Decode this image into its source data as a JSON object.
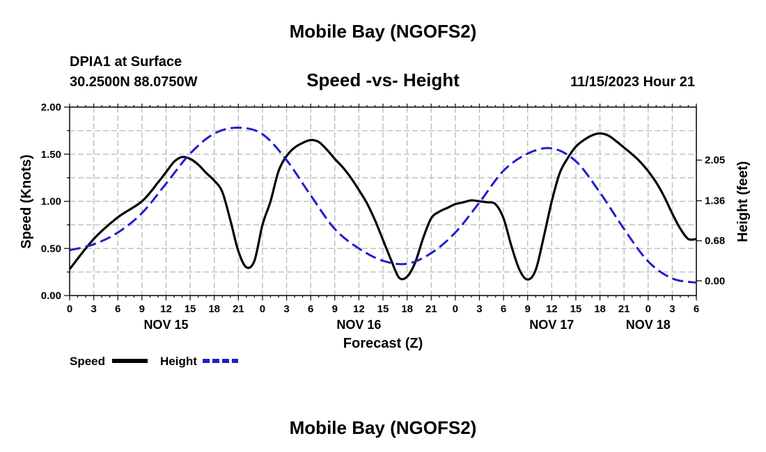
{
  "page": {
    "top_title": "Mobile Bay (NGOFS2)",
    "bottom_title": "Mobile Bay (NGOFS2)",
    "station": "DPIA1 at Surface",
    "location": "30.2500N  88.0750W",
    "datetime": "11/15/2023 Hour 21"
  },
  "chart_data": {
    "type": "line",
    "title": "Speed -vs- Height",
    "xlabel": "Forecast (Z)",
    "ylabel_left": "Speed (Knots)",
    "ylabel_right": "Height (feet)",
    "x_unit": "hours since NOV 15 00Z",
    "xlim": [
      0,
      78
    ],
    "ylim_left": [
      0,
      2.0
    ],
    "ylim_right": [
      -0.25,
      2.95
    ],
    "left_ticks": [
      "0.00",
      "0.50",
      "1.00",
      "1.50",
      "2.00"
    ],
    "right_ticks": [
      "0.00",
      "0.68",
      "1.36",
      "2.05"
    ],
    "right_tick_values": [
      0.0,
      0.68,
      1.36,
      2.05
    ],
    "x_tick_labels": [
      "0",
      "3",
      "6",
      "9",
      "12",
      "15",
      "18",
      "21",
      "0",
      "3",
      "6",
      "9",
      "12",
      "15",
      "18",
      "21",
      "0",
      "3",
      "6",
      "9",
      "12",
      "15",
      "18",
      "21",
      "0",
      "3",
      "6"
    ],
    "day_labels": [
      {
        "label": "NOV 15",
        "x": 12
      },
      {
        "label": "NOV 16",
        "x": 36
      },
      {
        "label": "NOV 17",
        "x": 60
      },
      {
        "label": "NOV 18",
        "x": 72
      }
    ],
    "series": [
      {
        "name": "Speed",
        "axis": "left",
        "color": "#000000",
        "dash": "solid",
        "x": [
          0,
          3,
          6,
          9,
          11,
          12,
          13,
          14,
          15,
          16,
          17,
          18,
          19,
          20,
          21,
          22,
          23,
          24,
          25,
          26,
          27,
          28,
          29,
          30,
          31,
          32,
          33,
          34,
          35,
          36,
          37,
          38,
          39,
          40,
          41,
          42,
          43,
          44,
          45,
          46,
          47,
          48,
          49,
          50,
          51,
          52,
          53,
          54,
          55,
          56,
          57,
          58,
          59,
          60,
          61,
          62,
          63,
          64,
          65,
          66,
          67,
          68,
          69,
          70,
          71,
          72,
          73,
          74,
          75,
          76,
          77,
          78
        ],
        "values": [
          0.28,
          0.6,
          0.83,
          1.0,
          1.2,
          1.31,
          1.42,
          1.47,
          1.45,
          1.39,
          1.3,
          1.22,
          1.1,
          0.8,
          0.47,
          0.3,
          0.37,
          0.75,
          1.0,
          1.32,
          1.48,
          1.57,
          1.62,
          1.65,
          1.63,
          1.55,
          1.45,
          1.36,
          1.25,
          1.12,
          0.98,
          0.8,
          0.59,
          0.38,
          0.19,
          0.2,
          0.35,
          0.61,
          0.82,
          0.89,
          0.93,
          0.97,
          0.99,
          1.01,
          1.0,
          0.99,
          0.97,
          0.82,
          0.52,
          0.27,
          0.17,
          0.27,
          0.62,
          1.0,
          1.3,
          1.46,
          1.58,
          1.65,
          1.7,
          1.72,
          1.7,
          1.64,
          1.57,
          1.5,
          1.42,
          1.32,
          1.2,
          1.05,
          0.87,
          0.71,
          0.6,
          0.55
        ],
        "end_value": 0.6
      },
      {
        "name": "Height",
        "axis": "right",
        "color": "#1f1fcc",
        "dash": "dashed",
        "x": [
          0,
          3,
          6,
          9,
          12,
          15,
          18,
          21,
          24,
          27,
          30,
          33,
          36,
          39,
          42,
          45,
          48,
          51,
          54,
          57,
          60,
          63,
          66,
          69,
          72,
          75,
          78
        ],
        "values": [
          0.52,
          0.62,
          0.82,
          1.15,
          1.65,
          2.16,
          2.5,
          2.6,
          2.49,
          2.05,
          1.45,
          0.88,
          0.55,
          0.34,
          0.29,
          0.47,
          0.82,
          1.33,
          1.87,
          2.16,
          2.25,
          2.03,
          1.5,
          0.88,
          0.33,
          0.04,
          -0.03
        ]
      }
    ],
    "legend": [
      {
        "label": "Speed",
        "color": "#000000",
        "dash": "solid"
      },
      {
        "label": "Height",
        "color": "#1f1fcc",
        "dash": "dashed"
      }
    ]
  }
}
